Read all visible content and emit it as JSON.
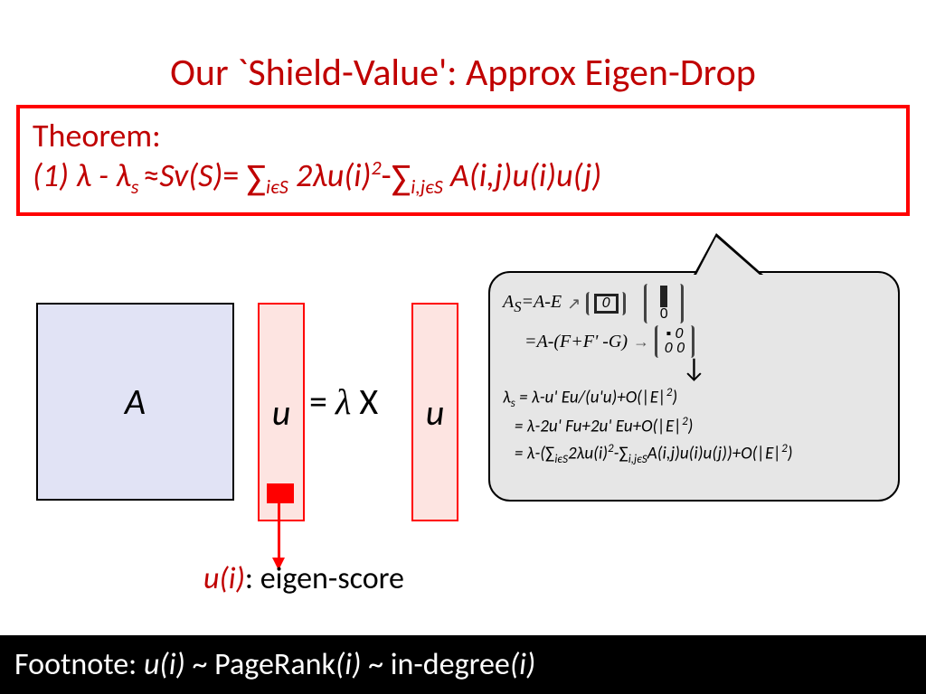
{
  "title": "Our `Shield-Value': Approx Eigen-Drop",
  "theorem": {
    "label": "Theorem:",
    "prefix": "(1) ",
    "formula_html": "λ - λ<sub>s </sub><span class='roman'>≈</span>Sv(S)<span class='roman'>=</span> <span class='sum'>∑</span><sub>iєS</sub> 2λu(i)<sup>2</sup><span class='roman'>-</span><span class='sum'>∑</span><sub>i,jєS</sub> A(i,j)u(i)u(j)"
  },
  "diagram": {
    "matrix_label": "A",
    "vec1_label": "u",
    "middle_text": "= λ X",
    "vec2_label": "u",
    "matrix_fill": "#e1e3f5",
    "matrix_border": "#000000",
    "vec_fill": "#fde4e1",
    "vec_border": "#ff0000",
    "highlight_fill": "#ff0000"
  },
  "eigen_score": {
    "var": "u(i)",
    "sep": ": ",
    "label": "eigen-score"
  },
  "callout": {
    "bg": "#e6e6e6",
    "border": "#000000",
    "line1_lhs": "A<sub>S</sub>=A-E",
    "line2_lhs": "=A-(F+F' -G)",
    "deriv1": "λ<sub>s</sub> = λ-u' Eu/(u'u)+O(|E|<sup>2</sup>)",
    "deriv2": "&nbsp;&nbsp;&nbsp;= λ-2u' Fu+2u' Eu+O(|E|<sup>2</sup>)",
    "deriv3": "&nbsp;&nbsp;&nbsp;= λ-(<span class='roman'>∑</span><sub>iєS</sub>2λu(i)<sup>2</sup>-<span class='roman'>∑</span><sub>i,jєS</sub>A(i,j)u(i)u(j))+O(|E|<sup>2</sup>)"
  },
  "footnote": {
    "prefix": "Footnote: ",
    "body_html": "<span class='it'>u(i)</span> ~ PageRank<span class='it'>(i)</span>  ~ in-degree<span class='it'>(i)</span>"
  },
  "colors": {
    "title": "#c00000",
    "theorem_border": "#ff0000",
    "footnote_bg": "#000000",
    "footnote_fg": "#ffffff"
  }
}
